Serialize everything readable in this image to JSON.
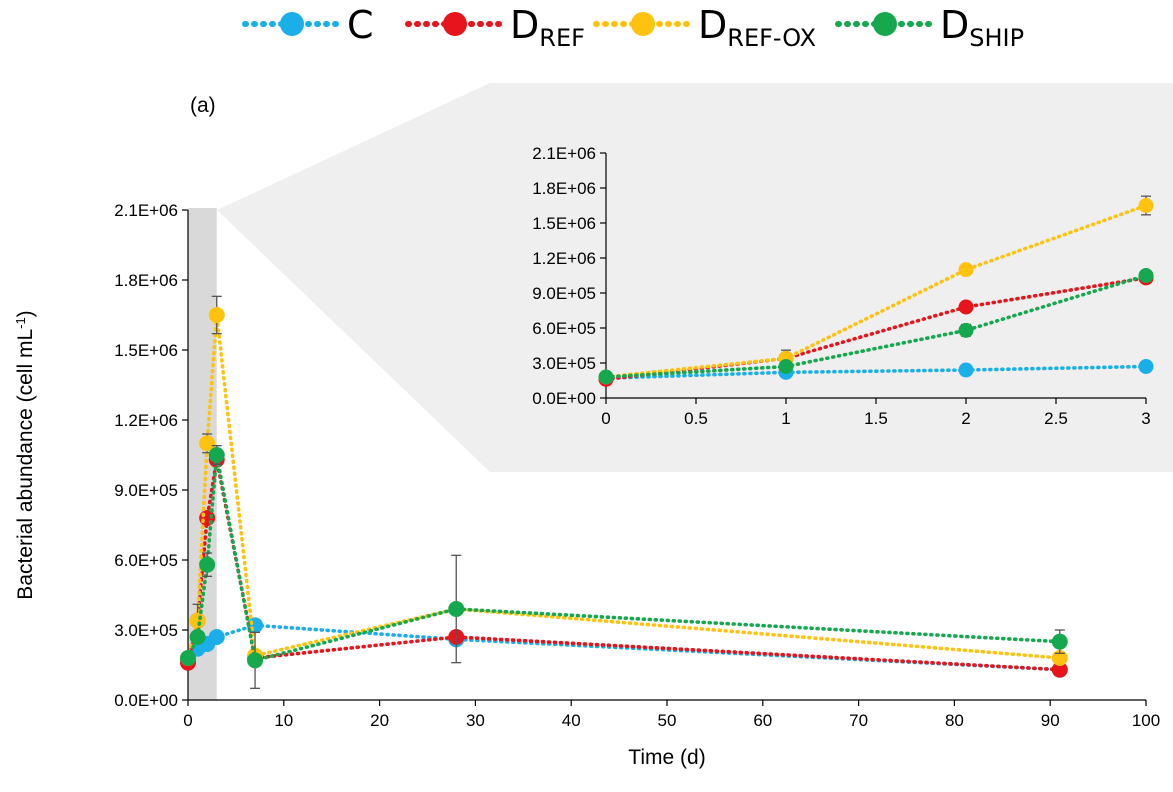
{
  "chart_data": [
    {
      "type": "line",
      "panel_label": "(a)",
      "xlabel": "Time (d)",
      "ylabel": "Bacterial abundance (cell mL",
      "ylabel_sup": "-1",
      "ylabel_end": ")",
      "xlim": [
        0,
        100
      ],
      "ylim": [
        0,
        2100000
      ],
      "x_ticks": [
        0,
        10,
        20,
        30,
        40,
        50,
        60,
        70,
        80,
        90,
        100
      ],
      "x_tick_labels": [
        "0",
        "10",
        "20",
        "30",
        "40",
        "50",
        "60",
        "70",
        "80",
        "90",
        "100"
      ],
      "y_ticks": [
        0,
        300000,
        600000,
        900000,
        1200000,
        1500000,
        1800000,
        2100000
      ],
      "y_tick_labels": [
        "0.0E+00",
        "3.0E+05",
        "6.0E+05",
        "9.0E+05",
        "1.2E+06",
        "1.5E+06",
        "1.8E+06",
        "2.1E+06"
      ],
      "highlight_range": [
        0,
        3
      ],
      "grid": false,
      "legend_position": "top",
      "x": [
        0,
        1,
        2,
        3,
        7,
        28,
        91
      ],
      "series": [
        {
          "name": "C",
          "color": "#1AAFE8",
          "values": [
            170000,
            220000,
            240000,
            270000,
            320000,
            260000,
            130000
          ],
          "errors": [
            0,
            0,
            0,
            0,
            0,
            0,
            0
          ]
        },
        {
          "name": "D",
          "sub": "REF",
          "color": "#E8141B",
          "values": [
            160000,
            340000,
            780000,
            1030000,
            180000,
            270000,
            130000
          ],
          "errors": [
            0,
            0,
            0,
            0,
            0,
            0,
            20000
          ]
        },
        {
          "name": "D",
          "sub": "REF-OX",
          "color": "#FFC20E",
          "values": [
            180000,
            340000,
            1100000,
            1650000,
            190000,
            390000,
            180000
          ],
          "errors": [
            0,
            70000,
            40000,
            80000,
            0,
            0,
            0
          ]
        },
        {
          "name": "D",
          "sub": "SHIP",
          "color": "#16A84F",
          "values": [
            180000,
            270000,
            580000,
            1050000,
            170000,
            390000,
            250000
          ],
          "errors": [
            0,
            0,
            50000,
            40000,
            120000,
            230000,
            50000
          ]
        }
      ]
    },
    {
      "type": "line",
      "role": "inset",
      "xlim": [
        0,
        3
      ],
      "ylim": [
        0,
        2100000
      ],
      "x_ticks": [
        0,
        0.5,
        1,
        1.5,
        2,
        2.5,
        3
      ],
      "x_tick_labels": [
        "0",
        "0.5",
        "1",
        "1.5",
        "2",
        "2.5",
        "3"
      ],
      "y_ticks": [
        0,
        300000,
        600000,
        900000,
        1200000,
        1500000,
        1800000,
        2100000
      ],
      "y_tick_labels": [
        "0.0E+00",
        "3.0E+05",
        "6.0E+05",
        "9.0E+05",
        "1.2E+06",
        "1.5E+06",
        "1.8E+06",
        "2.1E+06"
      ],
      "grid": false,
      "x": [
        0,
        1,
        2,
        3
      ],
      "series": [
        {
          "name": "C",
          "color": "#1AAFE8",
          "values": [
            170000,
            220000,
            240000,
            270000
          ],
          "errors": [
            0,
            0,
            0,
            0
          ]
        },
        {
          "name": "D",
          "sub": "REF",
          "color": "#E8141B",
          "values": [
            160000,
            340000,
            780000,
            1030000
          ],
          "errors": [
            0,
            0,
            0,
            0
          ]
        },
        {
          "name": "D",
          "sub": "REF-OX",
          "color": "#FFC20E",
          "values": [
            180000,
            340000,
            1100000,
            1650000
          ],
          "errors": [
            0,
            70000,
            40000,
            80000
          ]
        },
        {
          "name": "D",
          "sub": "SHIP",
          "color": "#16A84F",
          "values": [
            180000,
            270000,
            580000,
            1050000
          ],
          "errors": [
            0,
            0,
            50000,
            40000
          ]
        }
      ]
    }
  ]
}
